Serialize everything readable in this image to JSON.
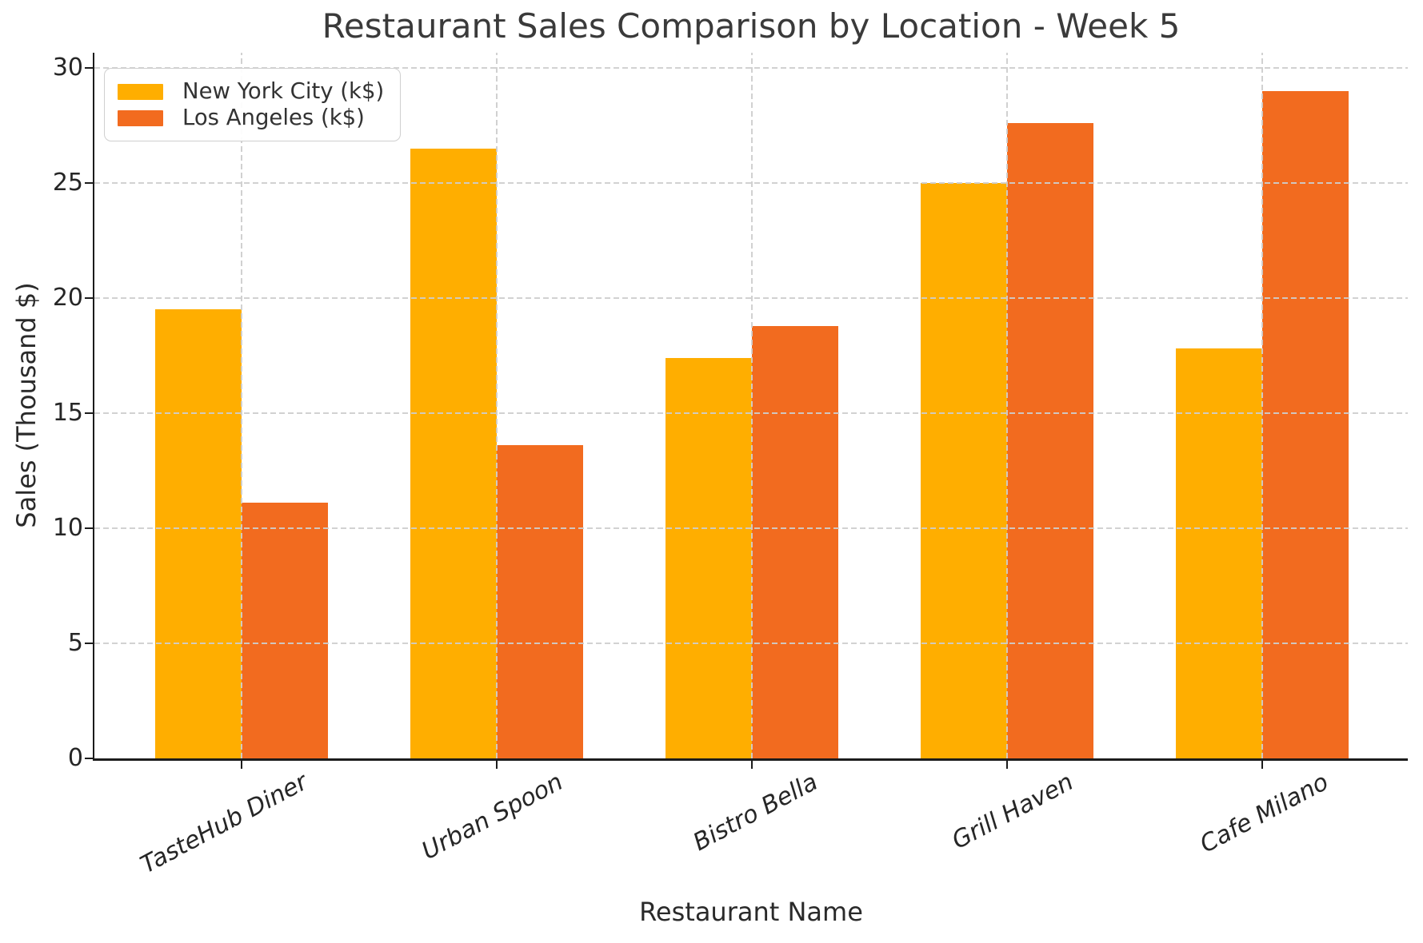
{
  "title": "Restaurant Sales Comparison by Location - Week 5",
  "chart_data": {
    "type": "bar",
    "title": "Restaurant Sales Comparison by Location - Week 5",
    "xlabel": "Restaurant Name",
    "ylabel": "Sales (Thousand $)",
    "categories": [
      "TasteHub Diner",
      "Urban Spoon",
      "Bistro Bella",
      "Grill Haven",
      "Cafe Milano"
    ],
    "series": [
      {
        "name": "New York City (k$)",
        "color": "#FFAE00",
        "values": [
          19.5,
          26.5,
          17.4,
          25.0,
          17.8
        ]
      },
      {
        "name": "Los Angeles (k$)",
        "color": "#F26B1F",
        "values": [
          11.1,
          13.6,
          18.8,
          27.6,
          29.0
        ]
      }
    ],
    "ylim": [
      0,
      30.6
    ],
    "yticks": [
      0,
      5,
      10,
      15,
      20,
      25,
      30
    ],
    "grid": "dashed-both-axes-drawn-above-bars",
    "legend_position": "upper-left",
    "xtick_style": "italic-rotated",
    "background": "#ffffff"
  }
}
